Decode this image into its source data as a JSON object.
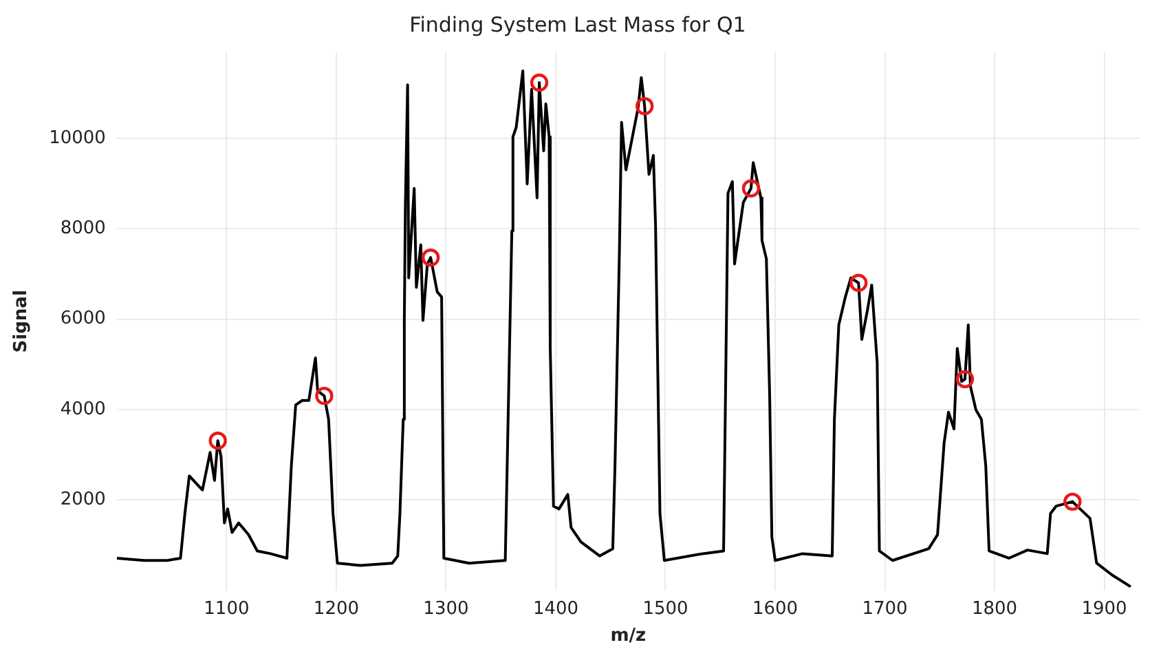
{
  "chart_data": {
    "type": "line",
    "title": "Finding System Last Mass for Q1",
    "xlabel": "m/z",
    "ylabel": "Signal",
    "xlim": [
      1000,
      1932
    ],
    "ylim": [
      0,
      11900
    ],
    "xticks": [
      1100,
      1200,
      1300,
      1400,
      1500,
      1600,
      1700,
      1800,
      1900
    ],
    "yticks": [
      2000,
      4000,
      6000,
      8000,
      10000
    ],
    "grid": true,
    "series": [
      {
        "color": "#000000",
        "marker": "none",
        "x": [
          1000,
          1025,
          1046,
          1058,
          1062,
          1066,
          1074,
          1078,
          1085,
          1089,
          1092,
          1095,
          1098,
          1101,
          1105,
          1111,
          1120,
          1128,
          1140,
          1155,
          1159,
          1163,
          1169,
          1175,
          1181,
          1183,
          1189,
          1193,
          1197,
          1201,
          1222,
          1251,
          1256,
          1258,
          1261,
          1262,
          1263,
          1265,
          1266,
          1271,
          1273,
          1277,
          1279,
          1283,
          1286,
          1292,
          1296,
          1298,
          1321,
          1354,
          1356,
          1360,
          1361,
          1364,
          1370,
          1374,
          1378,
          1383,
          1385,
          1389,
          1391,
          1394,
          1395,
          1398,
          1403,
          1411,
          1414,
          1423,
          1440,
          1452,
          1454,
          1458,
          1460,
          1464,
          1475,
          1478,
          1481,
          1485,
          1489,
          1491,
          1495,
          1499,
          1534,
          1553,
          1555,
          1557,
          1561,
          1563,
          1571,
          1578,
          1580,
          1587,
          1588,
          1592,
          1595,
          1597,
          1600,
          1625,
          1652,
          1654,
          1658,
          1664,
          1669,
          1676,
          1679,
          1684,
          1688,
          1693,
          1695,
          1707,
          1740,
          1748,
          1754,
          1758,
          1763,
          1766,
          1770,
          1773,
          1776,
          1778,
          1783,
          1788,
          1792,
          1795,
          1813,
          1830,
          1848,
          1851,
          1856,
          1871,
          1887,
          1893,
          1907,
          1924
        ],
        "values": [
          710,
          660,
          660,
          710,
          1700,
          2530,
          2320,
          2220,
          3050,
          2430,
          3310,
          2950,
          1490,
          1800,
          1280,
          1490,
          1230,
          870,
          810,
          710,
          2740,
          4100,
          4200,
          4200,
          5140,
          4410,
          4300,
          3780,
          1700,
          600,
          550,
          600,
          760,
          1700,
          3780,
          5970,
          8580,
          11180,
          6910,
          8890,
          6700,
          7640,
          5970,
          7220,
          7360,
          6600,
          6490,
          710,
          600,
          660,
          3050,
          7950,
          10030,
          10240,
          11490,
          8990,
          11080,
          8680,
          11230,
          9720,
          10760,
          10030,
          5350,
          1860,
          1800,
          2120,
          1390,
          1070,
          760,
          920,
          2740,
          7430,
          10350,
          9300,
          10660,
          11340,
          10710,
          9200,
          9620,
          8060,
          1700,
          660,
          810,
          870,
          4820,
          8780,
          9040,
          7220,
          8580,
          8890,
          9460,
          8680,
          7740,
          7330,
          4300,
          1180,
          660,
          810,
          760,
          3780,
          5870,
          6490,
          6910,
          6800,
          5550,
          6180,
          6750,
          5030,
          870,
          660,
          920,
          1230,
          3260,
          3940,
          3570,
          5350,
          4620,
          4670,
          5870,
          4510,
          3990,
          3780,
          2740,
          870,
          710,
          890,
          810,
          1700,
          1860,
          1960,
          1590,
          600,
          340,
          80
        ]
      },
      {
        "type": "scatter",
        "color": "#e8191b",
        "marker": "circle",
        "x": [
          1092,
          1189,
          1286,
          1385,
          1481,
          1578,
          1676,
          1773,
          1871
        ],
        "values": [
          3310,
          4300,
          7360,
          11230,
          10710,
          8890,
          6800,
          4670,
          1960
        ]
      }
    ]
  }
}
